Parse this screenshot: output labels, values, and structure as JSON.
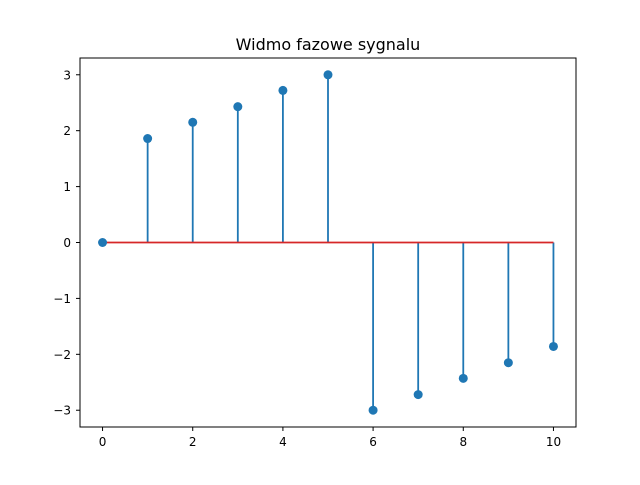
{
  "chart_data": {
    "type": "stem",
    "title": "Widmo fazowe sygnalu",
    "xlabel": "",
    "ylabel": "",
    "x": [
      0,
      1,
      2,
      3,
      4,
      5,
      6,
      7,
      8,
      9,
      10
    ],
    "y": [
      0.0,
      1.86,
      2.15,
      2.43,
      2.72,
      3.0,
      -3.0,
      -2.72,
      -2.43,
      -2.15,
      -1.86
    ],
    "xlim": [
      -0.5,
      10.5
    ],
    "ylim": [
      -3.3,
      3.3
    ],
    "xticks": [
      0,
      2,
      4,
      6,
      8,
      10
    ],
    "xtick_labels": [
      "0",
      "2",
      "4",
      "6",
      "8",
      "10"
    ],
    "yticks": [
      -3,
      -2,
      -1,
      0,
      1,
      2,
      3
    ],
    "ytick_labels": [
      "−3",
      "−2",
      "−1",
      "0",
      "1",
      "2",
      "3"
    ],
    "baseline": 0,
    "grid": false,
    "legend": "none",
    "colors": {
      "stem": "#1f77b4",
      "marker": "#1f77b4",
      "baseline": "#d62728"
    }
  }
}
